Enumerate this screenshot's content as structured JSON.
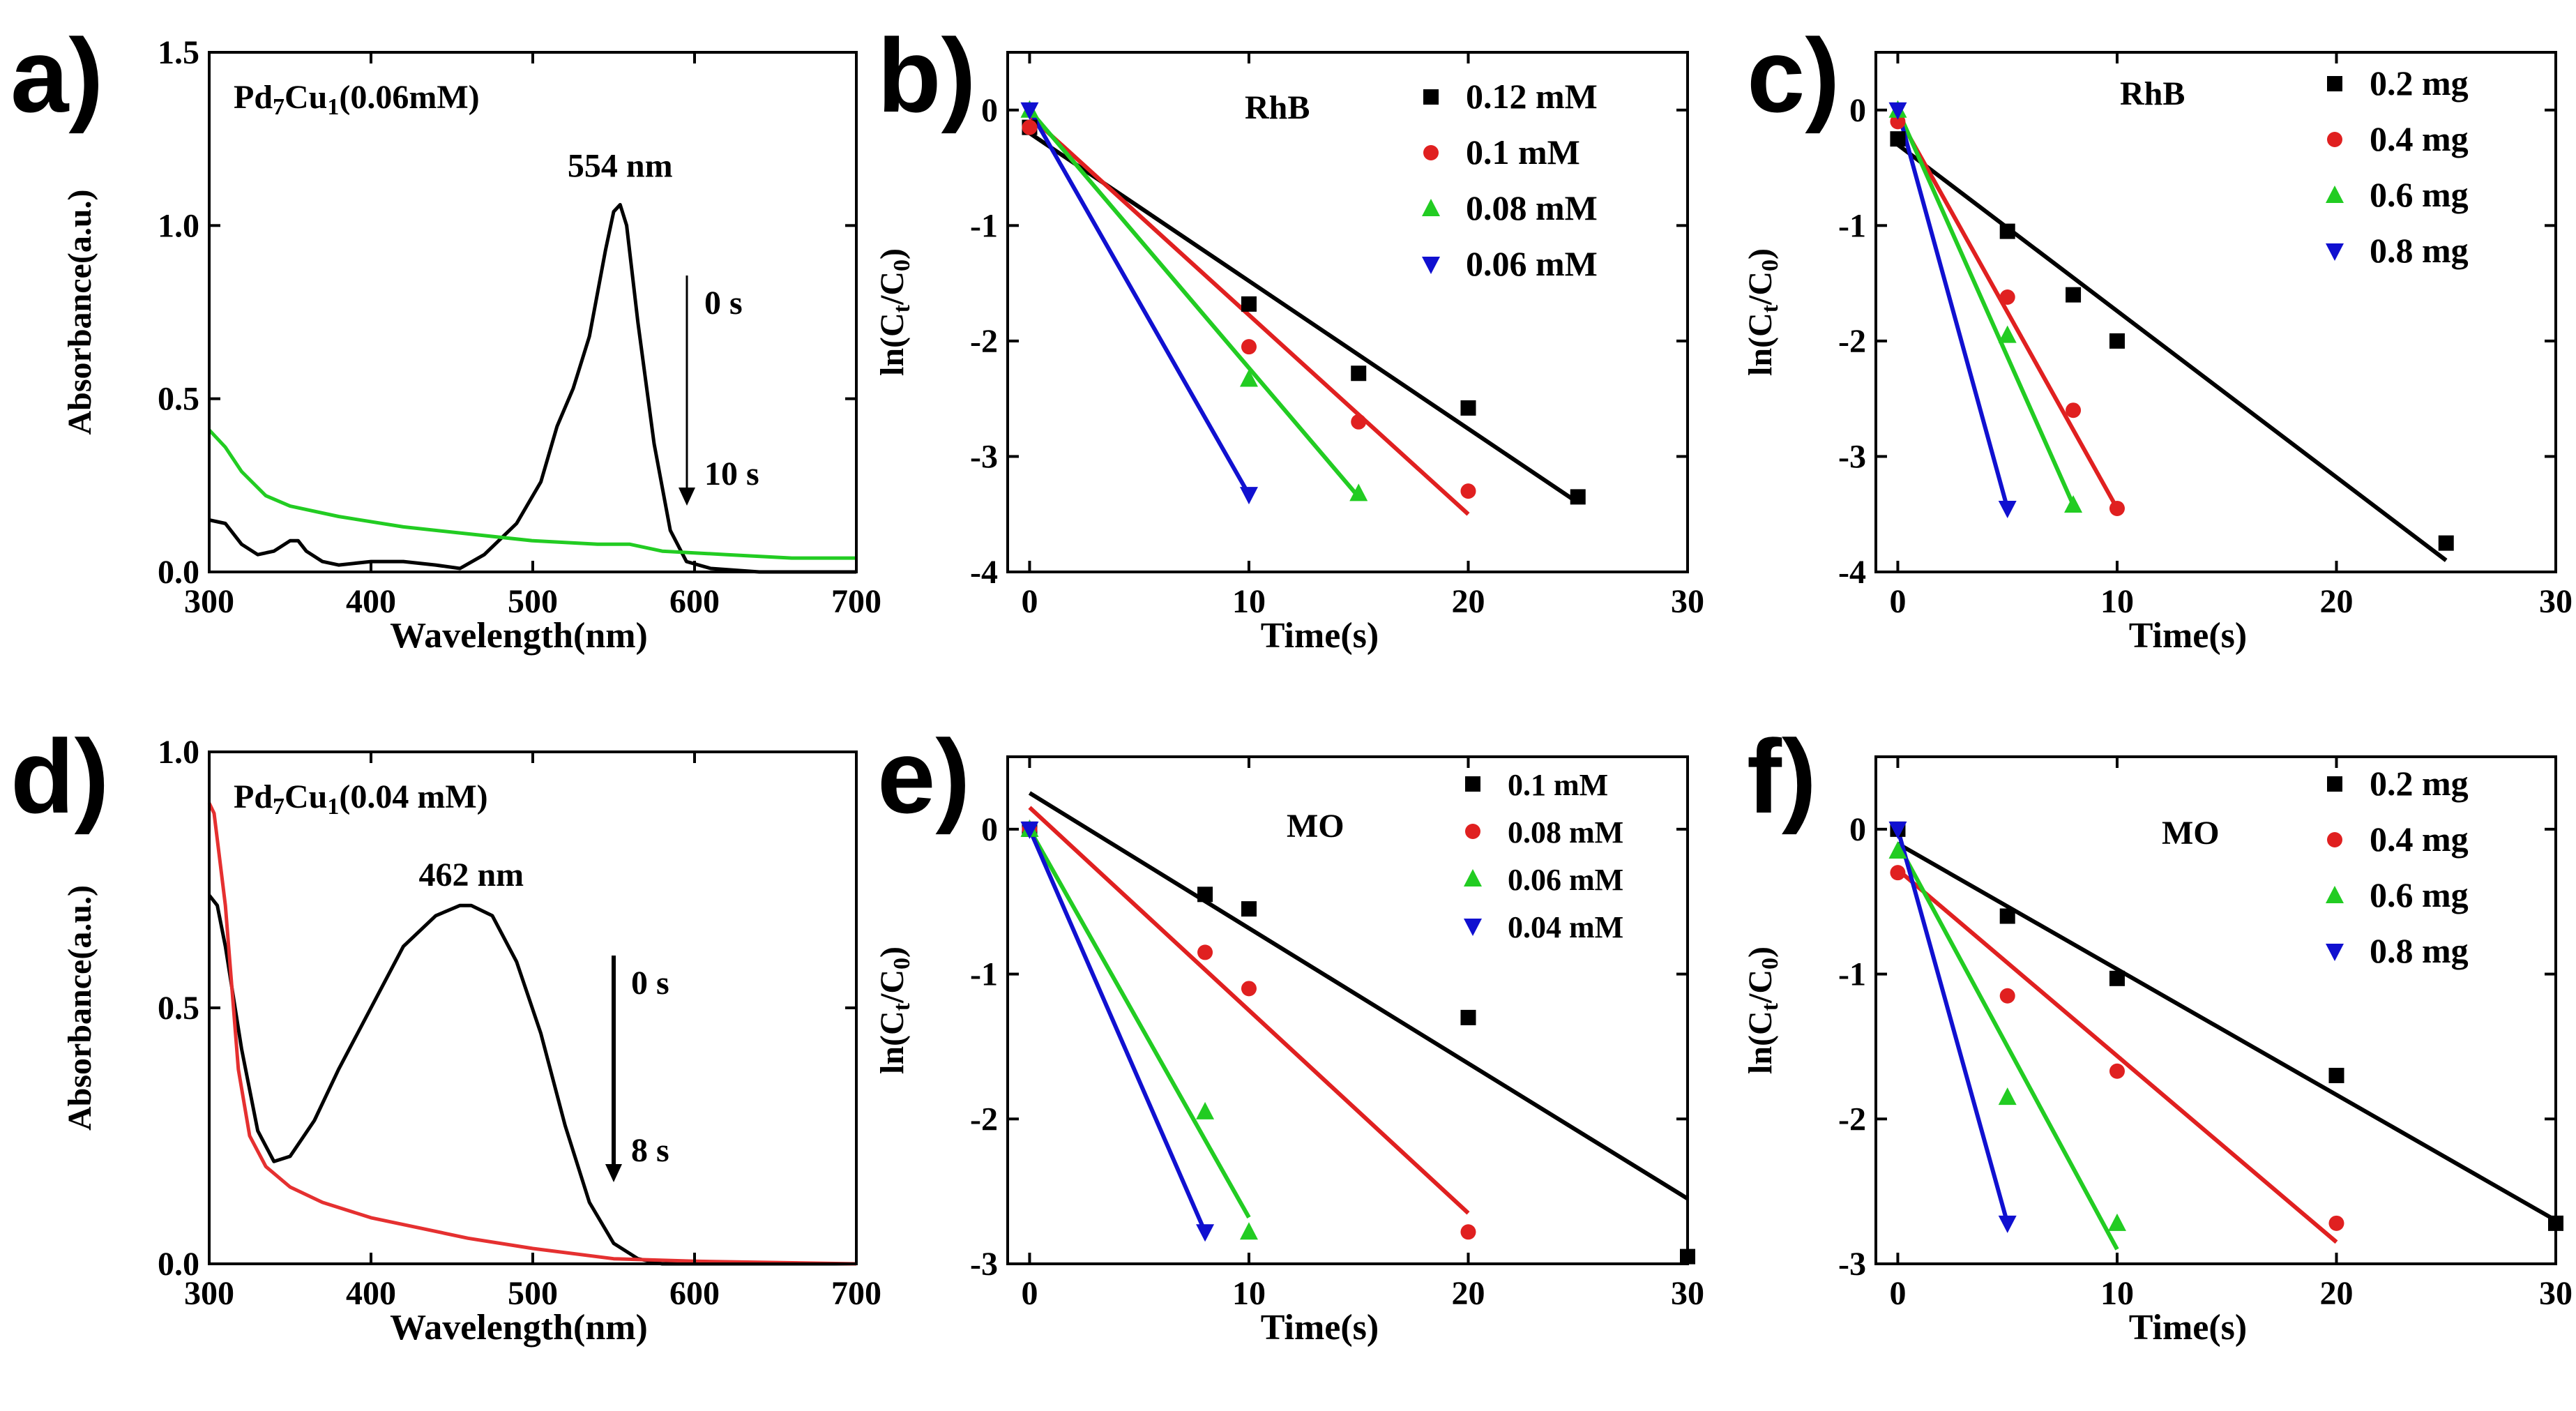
{
  "figure": {
    "panels": [
      {
        "id": "a",
        "letter": "a)",
        "title_main": "Pd",
        "title_sub1": "7",
        "title_mid": "Cu",
        "title_sub2": "1",
        "title_rest": "(0.06mM)",
        "peak_label": "554 nm",
        "arrow_start_label": "0 s",
        "arrow_end_label": "10 s",
        "arrow_end_color": "#22cc22"
      },
      {
        "id": "d",
        "letter": "d)",
        "title_main": "Pd",
        "title_sub1": "7",
        "title_mid": "Cu",
        "title_sub2": "1",
        "title_rest": "(0.04 mM)",
        "peak_label": "462 nm",
        "arrow_start_label": "0 s",
        "arrow_end_label": "8 s",
        "arrow_end_color": "#e53030"
      },
      {
        "id": "b",
        "letter": "b)",
        "dye": "RhB"
      },
      {
        "id": "c",
        "letter": "c)",
        "dye": "RhB"
      },
      {
        "id": "e",
        "letter": "e)",
        "dye": "MO"
      },
      {
        "id": "f",
        "letter": "f)",
        "dye": "MO"
      }
    ],
    "ylabel_parts": {
      "pre": "ln(C",
      "sub_t": "t",
      "mid": "/C",
      "sub_0": "0",
      "post": ")"
    }
  },
  "chart_data": [
    {
      "panel": "a",
      "type": "line",
      "xlabel": "Wavelength(nm)",
      "ylabel": "Absorbance(a.u.)",
      "xlim": [
        300,
        700
      ],
      "ylim": [
        0,
        1.5
      ],
      "xticks": [
        300,
        400,
        500,
        600,
        700
      ],
      "yticks": [
        0.0,
        0.5,
        1.0,
        1.5
      ],
      "ytick_labels": [
        "0.0",
        "0.5",
        "1.0",
        "1.5"
      ],
      "series": [
        {
          "name": "0 s",
          "color": "#000000",
          "x": [
            300,
            310,
            320,
            330,
            340,
            350,
            355,
            360,
            370,
            380,
            400,
            420,
            440,
            455,
            470,
            490,
            505,
            515,
            525,
            535,
            545,
            550,
            554,
            558,
            565,
            575,
            585,
            595,
            610,
            640,
            700
          ],
          "y": [
            0.15,
            0.14,
            0.08,
            0.05,
            0.06,
            0.09,
            0.09,
            0.06,
            0.03,
            0.02,
            0.03,
            0.03,
            0.02,
            0.01,
            0.05,
            0.14,
            0.26,
            0.42,
            0.53,
            0.68,
            0.93,
            1.04,
            1.06,
            1.0,
            0.72,
            0.37,
            0.12,
            0.03,
            0.01,
            0.0,
            0.0
          ]
        },
        {
          "name": "10 s",
          "color": "#22cc22",
          "x": [
            300,
            310,
            320,
            335,
            350,
            380,
            420,
            460,
            500,
            540,
            560,
            580,
            620,
            660,
            700
          ],
          "y": [
            0.41,
            0.36,
            0.29,
            0.22,
            0.19,
            0.16,
            0.13,
            0.11,
            0.09,
            0.08,
            0.08,
            0.06,
            0.05,
            0.04,
            0.04
          ]
        }
      ]
    },
    {
      "panel": "b",
      "type": "scatter",
      "title": "RhB",
      "xlabel": "Time(s)",
      "xlim": [
        -1,
        30
      ],
      "ylim": [
        -4,
        0.5
      ],
      "xticks": [
        0,
        10,
        20,
        30
      ],
      "yticks": [
        0,
        -1,
        -2,
        -3,
        -4
      ],
      "series": [
        {
          "name": "0.12 mM",
          "color": "#000000",
          "marker": "square",
          "x": [
            0,
            10,
            15,
            20,
            25
          ],
          "y": [
            -0.15,
            -1.68,
            -2.28,
            -2.58,
            -3.35
          ],
          "fit": [
            [
              0,
              -0.2
            ],
            [
              25,
              -3.4
            ]
          ]
        },
        {
          "name": "0.1 mM",
          "color": "#e02020",
          "marker": "circle",
          "x": [
            0,
            10,
            15,
            20
          ],
          "y": [
            -0.15,
            -2.05,
            -2.7,
            -3.3
          ],
          "fit": [
            [
              0,
              -0.05
            ],
            [
              20,
              -3.5
            ]
          ]
        },
        {
          "name": "0.08 mM",
          "color": "#22cc22",
          "marker": "triangle-up",
          "x": [
            0,
            10,
            15
          ],
          "y": [
            0.0,
            -2.33,
            -3.32
          ],
          "fit": [
            [
              0,
              0.0
            ],
            [
              15,
              -3.35
            ]
          ]
        },
        {
          "name": "0.06 mM",
          "color": "#1010d0",
          "marker": "triangle-down",
          "x": [
            0,
            10
          ],
          "y": [
            0.0,
            -3.33
          ],
          "fit": [
            [
              0,
              0.0
            ],
            [
              10,
              -3.33
            ]
          ]
        }
      ]
    },
    {
      "panel": "c",
      "type": "scatter",
      "title": "RhB",
      "xlabel": "Time(s)",
      "xlim": [
        -1,
        30
      ],
      "ylim": [
        -4,
        0.5
      ],
      "xticks": [
        0,
        10,
        20,
        30
      ],
      "yticks": [
        0,
        -1,
        -2,
        -3,
        -4
      ],
      "series": [
        {
          "name": "0.2 mg",
          "color": "#000000",
          "marker": "square",
          "x": [
            0,
            5,
            8,
            10,
            25
          ],
          "y": [
            -0.25,
            -1.05,
            -1.6,
            -2.0,
            -3.75
          ],
          "fit": [
            [
              0,
              -0.3
            ],
            [
              25,
              -3.9
            ]
          ]
        },
        {
          "name": "0.4 mg",
          "color": "#e02020",
          "marker": "circle",
          "x": [
            0,
            5,
            8,
            10
          ],
          "y": [
            -0.1,
            -1.62,
            -2.6,
            -3.45
          ],
          "fit": [
            [
              0,
              -0.05
            ],
            [
              10,
              -3.45
            ]
          ]
        },
        {
          "name": "0.6 mg",
          "color": "#22cc22",
          "marker": "triangle-up",
          "x": [
            0,
            5,
            8
          ],
          "y": [
            0.0,
            -1.95,
            -3.42
          ],
          "fit": [
            [
              0,
              0.0
            ],
            [
              8,
              -3.42
            ]
          ]
        },
        {
          "name": "0.8 mg",
          "color": "#1010d0",
          "marker": "triangle-down",
          "x": [
            0,
            5
          ],
          "y": [
            0.0,
            -3.45
          ],
          "fit": [
            [
              0,
              0.0
            ],
            [
              5,
              -3.45
            ]
          ]
        }
      ]
    },
    {
      "panel": "d",
      "type": "line",
      "xlabel": "Wavelength(nm)",
      "ylabel": "Absorbance(a.u.)",
      "xlim": [
        300,
        700
      ],
      "ylim": [
        0,
        1.0
      ],
      "xticks": [
        300,
        400,
        500,
        600,
        700
      ],
      "yticks": [
        0.0,
        0.5,
        1.0
      ],
      "ytick_labels": [
        "0.0",
        "0.5",
        "1.0"
      ],
      "series": [
        {
          "name": "0 s",
          "color": "#000000",
          "x": [
            300,
            305,
            310,
            320,
            330,
            340,
            350,
            365,
            380,
            400,
            420,
            440,
            455,
            462,
            475,
            490,
            505,
            520,
            535,
            550,
            565,
            580,
            700
          ],
          "y": [
            0.72,
            0.7,
            0.62,
            0.42,
            0.26,
            0.2,
            0.21,
            0.28,
            0.38,
            0.5,
            0.62,
            0.68,
            0.7,
            0.7,
            0.68,
            0.59,
            0.45,
            0.27,
            0.12,
            0.04,
            0.01,
            0.0,
            0.0
          ]
        },
        {
          "name": "8 s",
          "color": "#e53030",
          "x": [
            300,
            303,
            310,
            318,
            325,
            335,
            350,
            370,
            400,
            430,
            460,
            500,
            550,
            600,
            700
          ],
          "y": [
            0.9,
            0.88,
            0.7,
            0.38,
            0.25,
            0.19,
            0.15,
            0.12,
            0.09,
            0.07,
            0.05,
            0.03,
            0.01,
            0.005,
            0.0
          ]
        }
      ]
    },
    {
      "panel": "e",
      "type": "scatter",
      "title": "MO",
      "xlabel": "Time(s)",
      "xlim": [
        -1,
        30
      ],
      "ylim": [
        -3,
        0.5
      ],
      "xticks": [
        0,
        10,
        20,
        30
      ],
      "yticks": [
        0,
        -1,
        -2,
        -3
      ],
      "series": [
        {
          "name": "0.1 mM",
          "color": "#000000",
          "marker": "square",
          "x": [
            0,
            8,
            10,
            20,
            30
          ],
          "y": [
            0.0,
            -0.45,
            -0.55,
            -1.3,
            -2.95
          ],
          "fit": [
            [
              0,
              0.25
            ],
            [
              30,
              -2.55
            ]
          ]
        },
        {
          "name": "0.08 mM",
          "color": "#e02020",
          "marker": "circle",
          "x": [
            0,
            8,
            10,
            20
          ],
          "y": [
            0.0,
            -0.85,
            -1.1,
            -2.78
          ],
          "fit": [
            [
              0,
              0.15
            ],
            [
              20,
              -2.65
            ]
          ]
        },
        {
          "name": "0.06 mM",
          "color": "#22cc22",
          "marker": "triangle-up",
          "x": [
            0,
            8,
            10
          ],
          "y": [
            0.0,
            -1.95,
            -2.78
          ],
          "fit": [
            [
              0,
              0.0
            ],
            [
              10,
              -2.68
            ]
          ]
        },
        {
          "name": "0.04 mM",
          "color": "#1010d0",
          "marker": "triangle-down",
          "x": [
            0,
            8
          ],
          "y": [
            0.0,
            -2.78
          ],
          "fit": [
            [
              0,
              0.0
            ],
            [
              8,
              -2.78
            ]
          ]
        }
      ]
    },
    {
      "panel": "f",
      "type": "scatter",
      "title": "MO",
      "xlabel": "Time(s)",
      "xlim": [
        -1,
        30
      ],
      "ylim": [
        -3,
        0.5
      ],
      "xticks": [
        0,
        10,
        20,
        30
      ],
      "yticks": [
        0,
        -1,
        -2,
        -3
      ],
      "series": [
        {
          "name": "0.2 mg",
          "color": "#000000",
          "marker": "square",
          "x": [
            0,
            5,
            10,
            20,
            30
          ],
          "y": [
            0.0,
            -0.6,
            -1.03,
            -1.7,
            -2.72
          ],
          "fit": [
            [
              0,
              -0.1
            ],
            [
              30,
              -2.7
            ]
          ]
        },
        {
          "name": "0.4 mg",
          "color": "#e02020",
          "marker": "circle",
          "x": [
            0,
            5,
            10,
            20
          ],
          "y": [
            -0.3,
            -1.15,
            -1.67,
            -2.72
          ],
          "fit": [
            [
              0,
              -0.28
            ],
            [
              20,
              -2.85
            ]
          ]
        },
        {
          "name": "0.6 mg",
          "color": "#22cc22",
          "marker": "triangle-up",
          "x": [
            0,
            5,
            10
          ],
          "y": [
            -0.15,
            -1.85,
            -2.72
          ],
          "fit": [
            [
              0,
              -0.1
            ],
            [
              10,
              -2.9
            ]
          ]
        },
        {
          "name": "0.8 mg",
          "color": "#1010d0",
          "marker": "triangle-down",
          "x": [
            0,
            5
          ],
          "y": [
            0.0,
            -2.72
          ],
          "fit": [
            [
              0,
              0.0
            ],
            [
              5,
              -2.72
            ]
          ]
        }
      ]
    }
  ]
}
